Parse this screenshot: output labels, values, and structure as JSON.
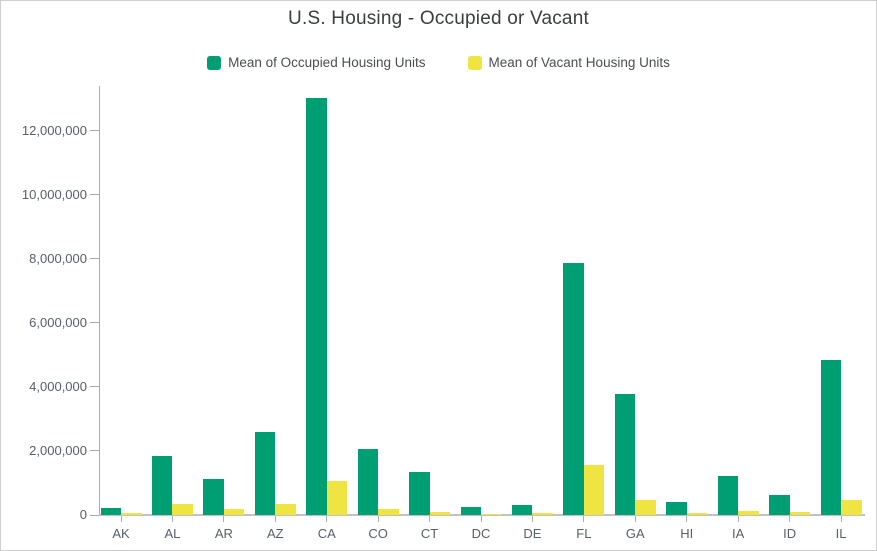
{
  "title": "U.S. Housing - Occupied or Vacant",
  "legend": {
    "items": [
      {
        "label": "Mean of Occupied Housing Units",
        "color": "#009e73"
      },
      {
        "label": "Mean of Vacant Housing Units",
        "color": "#f0e442"
      }
    ]
  },
  "chart_data": {
    "type": "bar",
    "title": "U.S. Housing - Occupied or Vacant",
    "categories": [
      "AK",
      "AL",
      "AR",
      "AZ",
      "CA",
      "CO",
      "CT",
      "DC",
      "DE",
      "FL",
      "GA",
      "HI",
      "IA",
      "ID",
      "IL"
    ],
    "series": [
      {
        "name": "Mean of Occupied Housing Units",
        "color": "#009e73",
        "values": [
          220000,
          1840000,
          1130000,
          2590000,
          13020000,
          2070000,
          1340000,
          240000,
          320000,
          7870000,
          3780000,
          420000,
          1230000,
          620000,
          4830000
        ]
      },
      {
        "name": "Mean of Vacant Housing Units",
        "color": "#f0e442",
        "values": [
          60000,
          350000,
          190000,
          340000,
          1060000,
          200000,
          100000,
          30000,
          60000,
          1570000,
          460000,
          70000,
          130000,
          80000,
          470000
        ]
      }
    ],
    "xlabel": "",
    "ylabel": "",
    "ylim": [
      0,
      13400000
    ],
    "yticks": [
      0,
      2000000,
      4000000,
      6000000,
      8000000,
      10000000,
      12000000
    ],
    "grid": false,
    "legend_position": "top",
    "bar_orientation": "vertical"
  }
}
